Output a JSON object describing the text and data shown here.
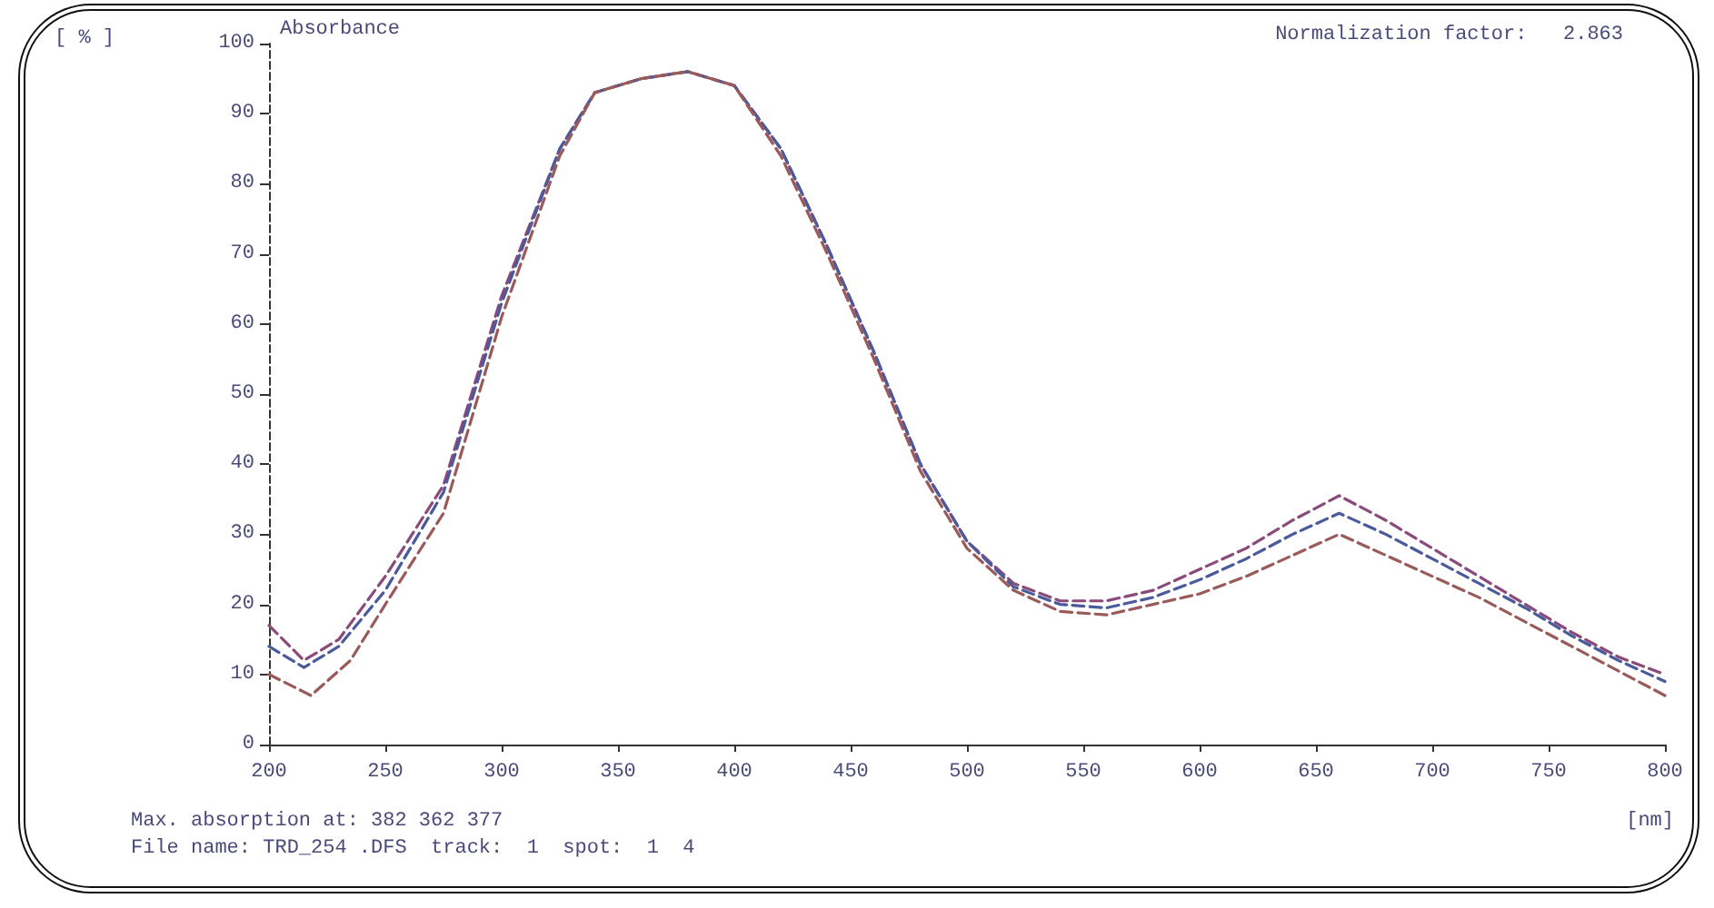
{
  "chart_data": {
    "type": "line",
    "ylabel": "Absorbance",
    "xlabel": "[nm]",
    "annotations": [
      "[ % ]",
      "Normalization factor:   2.863",
      "Max. absorption at: 382 362 377",
      "File name: TRD_254 .DFS  track:  1  spot:  1  4"
    ],
    "xlim": [
      200,
      800
    ],
    "xticks": [
      200,
      250,
      300,
      350,
      400,
      450,
      500,
      550,
      600,
      650,
      700,
      750,
      800
    ],
    "ylim": [
      0,
      100
    ],
    "yticks": [
      0,
      10,
      20,
      30,
      40,
      50,
      60,
      70,
      80,
      90,
      100
    ],
    "grid": false,
    "marker": "none",
    "line_style": "dashed",
    "series": [
      {
        "color": "#8a4a7a",
        "x": [
          200,
          215,
          230,
          250,
          275,
          300,
          325,
          340,
          360,
          380,
          400,
          420,
          440,
          460,
          480,
          500,
          520,
          540,
          560,
          580,
          600,
          620,
          640,
          660,
          680,
          700,
          720,
          740,
          760,
          780,
          800
        ],
        "values": [
          17,
          12,
          15,
          24,
          37,
          64,
          85,
          93,
          95,
          96,
          94,
          85,
          71,
          56,
          40,
          29,
          23,
          20.5,
          20.5,
          22,
          25,
          28,
          32,
          35.5,
          32,
          28,
          24,
          20,
          16,
          12.5,
          10
        ]
      },
      {
        "color": "#4a5a9a",
        "x": [
          200,
          215,
          230,
          250,
          275,
          300,
          325,
          340,
          360,
          380,
          400,
          420,
          440,
          460,
          480,
          500,
          520,
          540,
          560,
          580,
          600,
          620,
          640,
          660,
          680,
          700,
          720,
          740,
          760,
          780,
          800
        ],
        "values": [
          14,
          11,
          14,
          22,
          36,
          63,
          85,
          93,
          95,
          96,
          94,
          85,
          71,
          56,
          40,
          29,
          22.5,
          20,
          19.5,
          21,
          23.5,
          26.5,
          30,
          33,
          30,
          26.5,
          23,
          19.5,
          15.5,
          12,
          9
        ]
      },
      {
        "color": "#9a5a5a",
        "x": [
          200,
          218,
          235,
          250,
          275,
          300,
          325,
          340,
          360,
          380,
          400,
          420,
          440,
          460,
          480,
          500,
          520,
          540,
          560,
          580,
          600,
          620,
          640,
          660,
          680,
          700,
          720,
          740,
          760,
          780,
          800
        ],
        "values": [
          10,
          7,
          12,
          20,
          33,
          61,
          84,
          93,
          95,
          96,
          94,
          84,
          70,
          55,
          39,
          28,
          22,
          19,
          18.5,
          20,
          21.5,
          24,
          27,
          30,
          27,
          24,
          21,
          17.5,
          14,
          10.5,
          7
        ]
      }
    ]
  }
}
